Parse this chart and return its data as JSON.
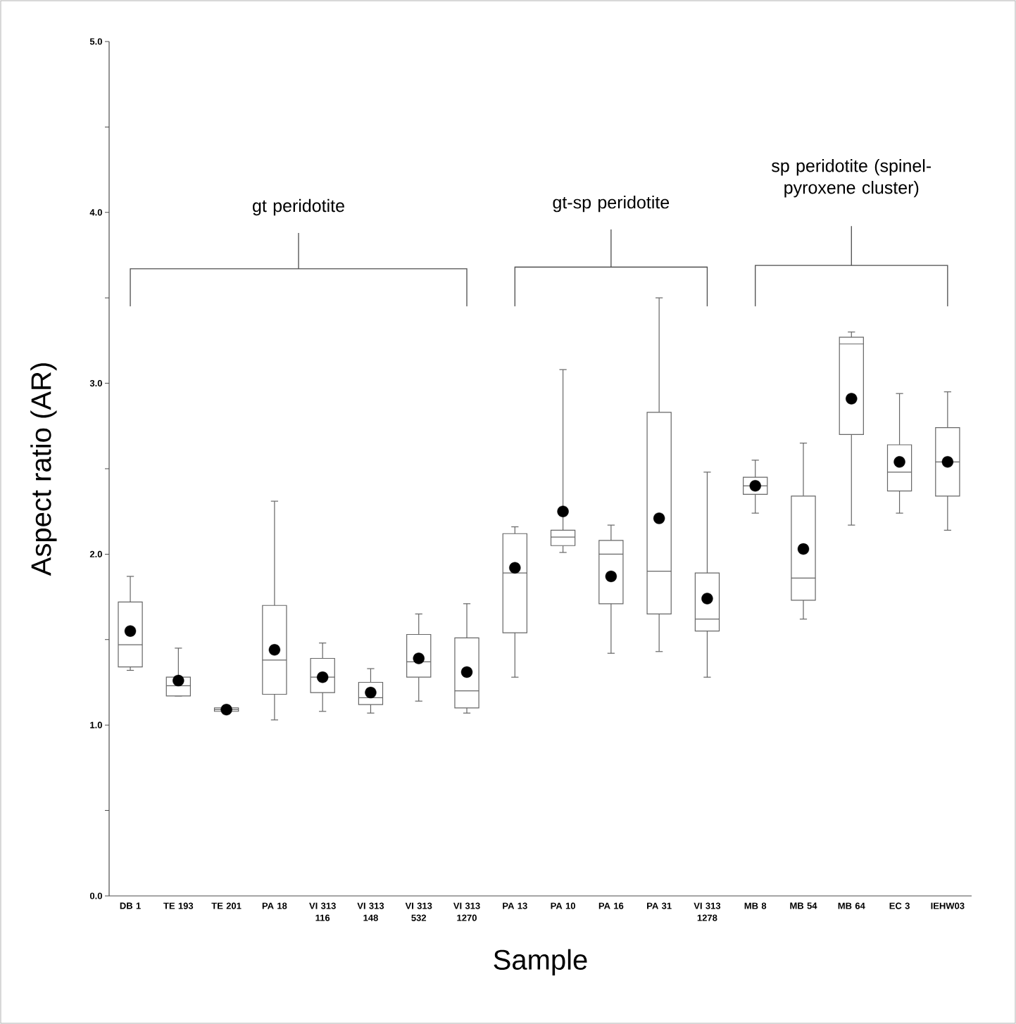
{
  "chart_data": {
    "type": "box",
    "xlabel": "Sample",
    "ylabel": "Aspect ratio (AR)",
    "categories": [
      "DB 1",
      "TE 193",
      "TE 201",
      "PA 18",
      "VI 313 116",
      "VI 313 148",
      "VI 313 532",
      "VI 313 1270",
      "PA 13",
      "PA 10",
      "PA 16",
      "PA 31",
      "VI 313 1278",
      "MB 8",
      "MB 54",
      "MB 64",
      "EC 3",
      "IEHW03"
    ],
    "boxes": [
      {
        "low": 1.32,
        "q1": 1.34,
        "median": 1.47,
        "q3": 1.72,
        "high": 1.87,
        "mean": 1.55
      },
      {
        "low": 1.17,
        "q1": 1.17,
        "median": 1.23,
        "q3": 1.28,
        "high": 1.45,
        "mean": 1.26
      },
      {
        "low": 1.08,
        "q1": 1.08,
        "median": 1.09,
        "q3": 1.1,
        "high": 1.1,
        "mean": 1.09
      },
      {
        "low": 1.03,
        "q1": 1.18,
        "median": 1.38,
        "q3": 1.7,
        "high": 2.31,
        "mean": 1.44
      },
      {
        "low": 1.08,
        "q1": 1.19,
        "median": 1.28,
        "q3": 1.39,
        "high": 1.48,
        "mean": 1.28
      },
      {
        "low": 1.07,
        "q1": 1.12,
        "median": 1.16,
        "q3": 1.25,
        "high": 1.33,
        "mean": 1.19
      },
      {
        "low": 1.14,
        "q1": 1.28,
        "median": 1.37,
        "q3": 1.53,
        "high": 1.65,
        "mean": 1.39
      },
      {
        "low": 1.07,
        "q1": 1.1,
        "median": 1.2,
        "q3": 1.51,
        "high": 1.71,
        "mean": 1.31
      },
      {
        "low": 1.28,
        "q1": 1.54,
        "median": 1.89,
        "q3": 2.12,
        "high": 2.16,
        "mean": 1.92
      },
      {
        "low": 2.01,
        "q1": 2.05,
        "median": 2.1,
        "q3": 2.14,
        "high": 3.08,
        "mean": 2.25
      },
      {
        "low": 1.42,
        "q1": 1.71,
        "median": 2.0,
        "q3": 2.08,
        "high": 2.17,
        "mean": 1.87
      },
      {
        "low": 1.43,
        "q1": 1.65,
        "median": 1.9,
        "q3": 2.83,
        "high": 3.5,
        "mean": 2.21
      },
      {
        "low": 1.28,
        "q1": 1.55,
        "median": 1.62,
        "q3": 1.89,
        "high": 2.48,
        "mean": 1.74
      },
      {
        "low": 2.24,
        "q1": 2.35,
        "median": 2.4,
        "q3": 2.45,
        "high": 2.55,
        "mean": 2.4
      },
      {
        "low": 1.62,
        "q1": 1.73,
        "median": 1.86,
        "q3": 2.34,
        "high": 2.65,
        "mean": 2.03
      },
      {
        "low": 2.17,
        "q1": 2.7,
        "median": 3.23,
        "q3": 3.27,
        "high": 3.3,
        "mean": 2.91
      },
      {
        "low": 2.24,
        "q1": 2.37,
        "median": 2.48,
        "q3": 2.64,
        "high": 2.94,
        "mean": 2.54
      },
      {
        "low": 2.14,
        "q1": 2.34,
        "median": 2.54,
        "q3": 2.74,
        "high": 2.95,
        "mean": 2.54
      }
    ],
    "ylim": [
      0,
      5
    ],
    "yticks": [
      {
        "value": 0,
        "label": "0.0"
      },
      {
        "value": 0.5,
        "label": null
      },
      {
        "value": 1,
        "label": "1.0"
      },
      {
        "value": 1.5,
        "label": null
      },
      {
        "value": 2,
        "label": "2.0"
      },
      {
        "value": 2.5,
        "label": null
      },
      {
        "value": 3,
        "label": "3.0"
      },
      {
        "value": 3.5,
        "label": null
      },
      {
        "value": 4,
        "label": "4.0"
      },
      {
        "value": 4.5,
        "label": null
      },
      {
        "value": 5,
        "label": "5.0"
      }
    ],
    "annotations": [
      "gt peridotite",
      "gt-sp peridotite",
      "sp peridotite (spinel-pyroxene cluster)"
    ]
  }
}
